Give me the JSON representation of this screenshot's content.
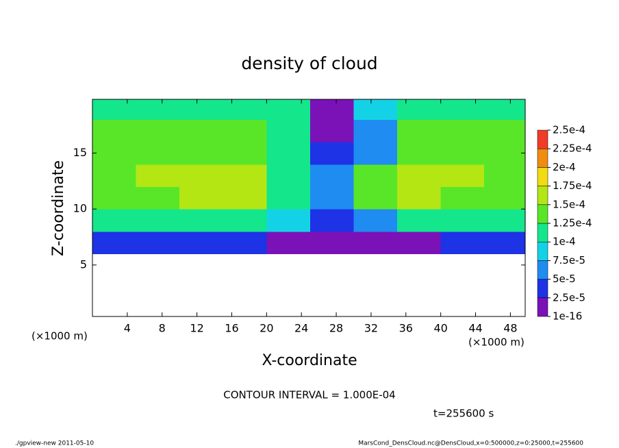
{
  "chart_data": {
    "type": "contour",
    "title": "density of cloud",
    "xlabel": "X-coordinate",
    "ylabel": "Z-coordinate",
    "axis_unit": "(×1000 m)",
    "annotation": "CONTOUR INTERVAL = 1.000E-04",
    "time_label": "t=255600 s",
    "footer_left": "./gpview-new  2011-05-10",
    "footer_right": "MarsCond_DensCloud.nc@DensCloud,x=0:500000,z=0:25000,t=255600",
    "xlim": [
      0,
      49.7
    ],
    "ylim": [
      0.4,
      19.8
    ],
    "xticks": [
      4,
      8,
      12,
      16,
      20,
      24,
      28,
      32,
      36,
      40,
      44,
      48
    ],
    "yticks": [
      5,
      10,
      15
    ],
    "x": [
      2.5,
      7.5,
      12.5,
      17.5,
      22.5,
      27.5,
      32.5,
      37.5,
      42.5,
      47.5
    ],
    "y": [
      7,
      9,
      11,
      13,
      15,
      17,
      19
    ],
    "values": [
      [
        3e-05,
        3e-05,
        3e-05,
        3e-05,
        2e-05,
        1e-05,
        1e-05,
        2e-05,
        3e-05,
        3e-05
      ],
      [
        0.00011,
        0.00011,
        0.00011,
        0.00011,
        8e-05,
        4e-05,
        6e-05,
        0.00011,
        0.00011,
        0.00011
      ],
      [
        0.00014,
        0.000145,
        0.00015,
        0.00015,
        0.00012,
        6e-05,
        0.00013,
        0.00015,
        0.000145,
        0.00014
      ],
      [
        0.00014,
        0.00015,
        0.00015,
        0.00015,
        0.00011,
        5e-05,
        0.00013,
        0.000155,
        0.00015,
        0.00014
      ],
      [
        0.000135,
        0.000145,
        0.000145,
        0.00014,
        0.00012,
        3e-05,
        6e-05,
        0.00014,
        0.000145,
        0.000135
      ],
      [
        0.00013,
        0.000135,
        0.00014,
        0.000135,
        0.00011,
        2e-05,
        5e-05,
        0.00013,
        0.000135,
        0.00013
      ],
      [
        0.00012,
        0.00012,
        0.00012,
        0.00012,
        0.0001,
        1e-05,
        9e-05,
        0.00011,
        0.00012,
        0.00012
      ]
    ],
    "colorbar": {
      "levels": [
        {
          "value": 1e-16,
          "label": "1e-16"
        },
        {
          "value": 2.5e-05,
          "label": "2.5e-5"
        },
        {
          "value": 5e-05,
          "label": "5e-5"
        },
        {
          "value": 7.5e-05,
          "label": "7.5e-5"
        },
        {
          "value": 0.0001,
          "label": "1e-4"
        },
        {
          "value": 0.000125,
          "label": "1.25e-4"
        },
        {
          "value": 0.00015,
          "label": "1.5e-4"
        },
        {
          "value": 0.000175,
          "label": "1.75e-4"
        },
        {
          "value": 0.0002,
          "label": "2e-4"
        },
        {
          "value": 0.000225,
          "label": "2.25e-4"
        },
        {
          "value": 0.00025,
          "label": "2.5e-4"
        }
      ],
      "colors": [
        "#7a12b8",
        "#1e32e6",
        "#1e8cf0",
        "#14d2e6",
        "#14e68c",
        "#5ae628",
        "#b4e614",
        "#f0dc10",
        "#f08c10",
        "#f03c28"
      ]
    }
  }
}
